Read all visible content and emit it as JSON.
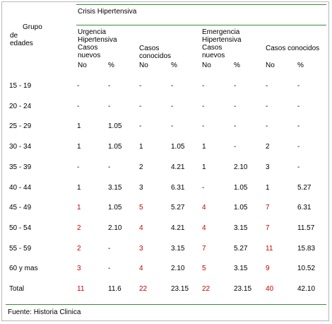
{
  "header": {
    "crisis": "Crisis Hipertensiva",
    "grupo_lines": [
      "Grupo",
      "de",
      "edades"
    ],
    "urgencia_lines": [
      "Urgencia",
      "Hipertensiva",
      "Casos",
      "nuevos"
    ],
    "emergencia_lines": [
      "Emergencia",
      "Hipertensiva",
      "Casos",
      "nuevos"
    ],
    "casos_conocidos_lines": [
      "Casos",
      "conocidos"
    ],
    "casos_conocidos_single": "Casos conocidos",
    "sub": [
      "No",
      "%",
      "No",
      "%",
      "No",
      "%",
      "No",
      "%"
    ]
  },
  "rows": [
    {
      "label": "15  - 19",
      "cells": [
        "-",
        "-",
        "-",
        "-",
        "-",
        "-",
        "-",
        "-"
      ],
      "red": [
        false,
        false,
        false,
        false,
        false,
        false,
        false,
        false
      ]
    },
    {
      "label": "20 - 24",
      "cells": [
        "-",
        "-",
        "-",
        "-",
        "-",
        "-",
        "-",
        "-"
      ],
      "red": [
        false,
        false,
        false,
        false,
        false,
        false,
        false,
        false
      ]
    },
    {
      "label": "25 - 29",
      "cells": [
        "1",
        "1.05",
        "-",
        "-",
        "-",
        "-",
        "-",
        "-"
      ],
      "red": [
        false,
        false,
        false,
        false,
        false,
        false,
        false,
        false
      ]
    },
    {
      "label": "30 - 34",
      "cells": [
        "1",
        "1.05",
        "1",
        "1.05",
        "1",
        "-",
        "2",
        "-"
      ],
      "red": [
        false,
        false,
        false,
        false,
        false,
        false,
        false,
        false
      ]
    },
    {
      "label": "35 - 39",
      "cells": [
        "-",
        "-",
        "2",
        "4.21",
        "1",
        "2.10",
        "3",
        "-"
      ],
      "red": [
        false,
        false,
        false,
        false,
        false,
        false,
        false,
        false
      ]
    },
    {
      "label": "40 - 44",
      "cells": [
        "1",
        "3.15",
        "3",
        "6.31",
        "-",
        "1.05",
        "1",
        "5.27"
      ],
      "red": [
        false,
        false,
        false,
        false,
        false,
        false,
        false,
        false
      ]
    },
    {
      "label": "45 - 49",
      "cells": [
        "1",
        "1.05",
        "5",
        "5.27",
        "4",
        "1.05",
        "7",
        "6.31"
      ],
      "red": [
        true,
        false,
        true,
        false,
        true,
        false,
        true,
        false
      ]
    },
    {
      "label": "50 - 54",
      "cells": [
        "2",
        "2.10",
        "4",
        "4.21",
        "4",
        "3.15",
        "7",
        "11.57"
      ],
      "red": [
        true,
        false,
        true,
        false,
        true,
        false,
        true,
        false
      ]
    },
    {
      "label": "55 - 59",
      "cells": [
        "2",
        "-",
        "3",
        "3.15",
        "7",
        "5.27",
        "11",
        "15.83"
      ],
      "red": [
        true,
        false,
        true,
        false,
        true,
        false,
        true,
        false
      ]
    },
    {
      "label": "60 y mas",
      "cells": [
        "3",
        "-",
        "4",
        "2.10",
        "5",
        "3.15",
        "9",
        "10.52"
      ],
      "red": [
        true,
        false,
        true,
        false,
        true,
        false,
        true,
        false
      ]
    },
    {
      "label": "Total",
      "cells": [
        "11",
        "11.6",
        "22",
        "23.15",
        "22",
        "23.15",
        "40",
        "42.10"
      ],
      "red": [
        true,
        false,
        true,
        false,
        true,
        false,
        true,
        false
      ]
    }
  ],
  "footer": "Fuente: Historia Clinica",
  "colors": {
    "rule": "#3a8a3a",
    "highlight": "#cc0000",
    "frame": "#b8b8b8"
  }
}
